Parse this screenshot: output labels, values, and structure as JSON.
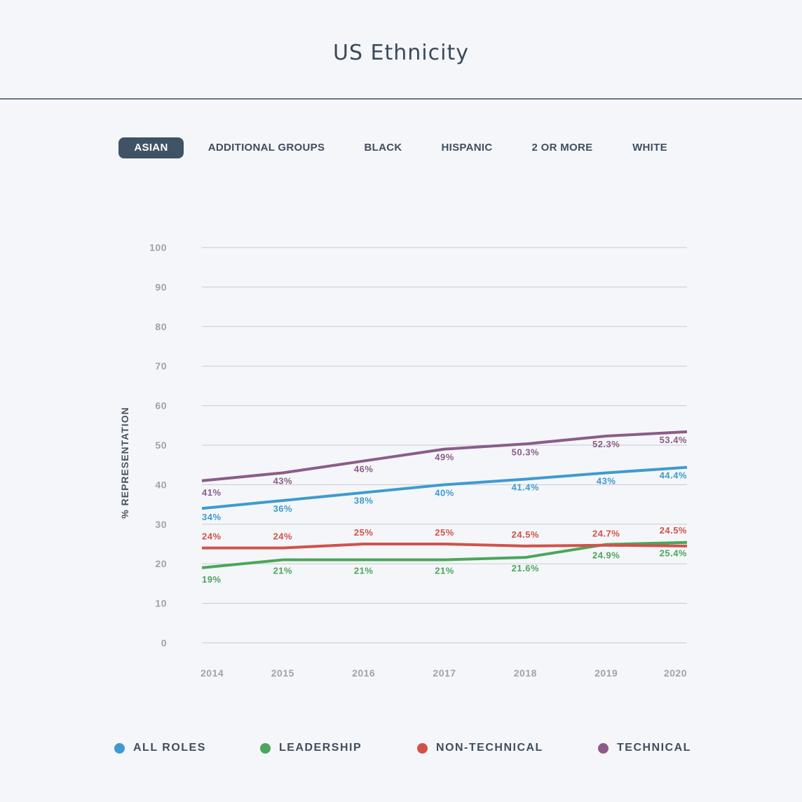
{
  "header": {
    "title": "US Ethnicity"
  },
  "tabs": [
    {
      "label": "ASIAN",
      "active": true
    },
    {
      "label": "ADDITIONAL GROUPS",
      "active": false
    },
    {
      "label": "BLACK",
      "active": false
    },
    {
      "label": "HISPANIC",
      "active": false
    },
    {
      "label": "2 OR MORE",
      "active": false
    },
    {
      "label": "WHITE",
      "active": false
    }
  ],
  "colors": {
    "all_roles": "#3d9bd0",
    "leadership": "#4aa65a",
    "non_technical": "#d1524a",
    "technical": "#8b5c8a",
    "grid": "#c9cbd0",
    "tick_text": "#9ea3aa",
    "ylabel_text": "#4a5563"
  },
  "chart_data": {
    "type": "line",
    "title": "",
    "xlabel": "",
    "ylabel": "% REPRESENTATION",
    "x": [
      "2014",
      "2015",
      "2016",
      "2017",
      "2018",
      "2019",
      "2020"
    ],
    "ylim": [
      0,
      100
    ],
    "yticks": [
      0,
      10,
      20,
      30,
      40,
      50,
      60,
      70,
      80,
      90,
      100
    ],
    "grid": true,
    "legend_position": "bottom",
    "series": [
      {
        "name": "TECHNICAL",
        "key": "technical",
        "values": [
          41,
          43,
          46,
          49,
          50.3,
          52.3,
          53.4
        ],
        "labels": [
          "41%",
          "43%",
          "46%",
          "49%",
          "50.3%",
          "52.3%",
          "53.4%"
        ]
      },
      {
        "name": "ALL ROLES",
        "key": "all_roles",
        "values": [
          34,
          36,
          38,
          40,
          41.4,
          43,
          44.4
        ],
        "labels": [
          "34%",
          "36%",
          "38%",
          "40%",
          "41.4%",
          "43%",
          "44.4%"
        ]
      },
      {
        "name": "NON-TECHNICAL",
        "key": "non_technical",
        "values": [
          24,
          24,
          25,
          25,
          24.5,
          24.7,
          24.5
        ],
        "labels": [
          "24%",
          "24%",
          "25%",
          "25%",
          "24.5%",
          "24.7%",
          "24.5%"
        ]
      },
      {
        "name": "LEADERSHIP",
        "key": "leadership",
        "values": [
          19,
          21,
          21,
          21,
          21.6,
          24.9,
          25.4
        ],
        "labels": [
          "19%",
          "21%",
          "21%",
          "21%",
          "21.6%",
          "24.9%",
          "25.4%"
        ]
      }
    ]
  },
  "legend": [
    {
      "label": "ALL ROLES",
      "key": "all_roles"
    },
    {
      "label": "LEADERSHIP",
      "key": "leadership"
    },
    {
      "label": "NON-TECHNICAL",
      "key": "non_technical"
    },
    {
      "label": "TECHNICAL",
      "key": "technical"
    }
  ]
}
